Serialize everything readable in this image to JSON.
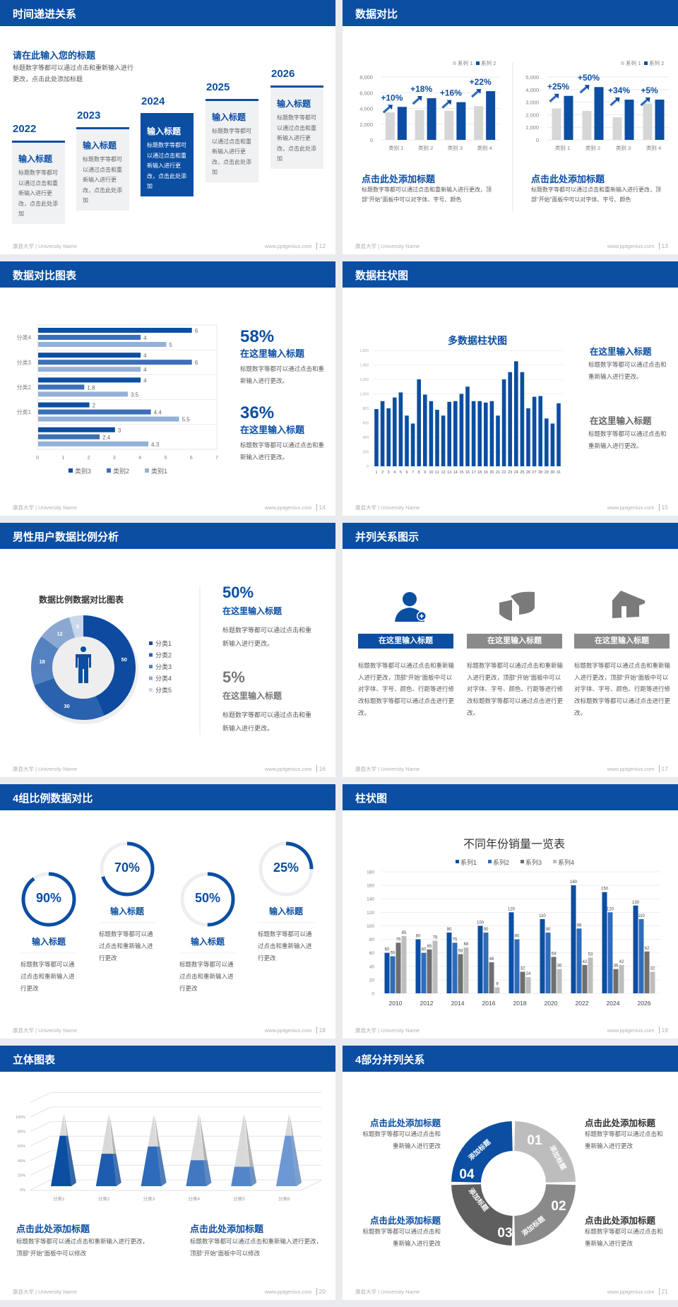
{
  "colors": {
    "brand": "#0b4ea2",
    "mid_blue": "#3d6fb5",
    "light_blue": "#93b1d8",
    "gray_bar": "#d6d6d6",
    "text": "#595959",
    "footer": "#b0b0b0"
  },
  "footer": {
    "university": "康县大学 | University Name",
    "site": "www.pptgenius.com"
  },
  "slides": [
    {
      "title": "时间递进关系",
      "page": "12",
      "heading": "请在此输入您的标题",
      "desc": "标题数字等都可以通过点击和重新输入进行更改，点击此处添加标题",
      "cards": [
        {
          "year": "2022",
          "title": "输入标题",
          "text": "标题数字等都可以通过点击和重新输入进行更改，点击此处添加",
          "active": false
        },
        {
          "year": "2023",
          "title": "输入标题",
          "text": "标题数字等都可以通过点击和重新输入进行更改，点击此处添加",
          "active": false
        },
        {
          "year": "2024",
          "title": "输入标题",
          "text": "标题数字等都可以通过点击和重新输入进行更改，点击此处添加",
          "active": true
        },
        {
          "year": "2025",
          "title": "输入标题",
          "text": "标题数字等都可以通过点击和重新输入进行更改，点击此处添加",
          "active": false
        },
        {
          "year": "2026",
          "title": "输入标题",
          "text": "标题数字等都可以通过点击和重新输入进行更改，点击此处添加",
          "active": false
        }
      ]
    },
    {
      "title": "数据对比",
      "page": "13",
      "blocks": [
        {
          "heading": "点击此处添加标题",
          "text": "标题数字等都可以通过点击和重新输入进行更改，顶部“开始”面板中可以对字体、字号、颜色"
        },
        {
          "heading": "点击此处添加标题",
          "text": "标题数字等都可以通过点击和重新输入进行更改，顶部“开始”面板中可以对字体、字号、颜色"
        }
      ]
    },
    {
      "title": "数据对比图表",
      "page": "14",
      "stats": [
        {
          "value": "58%",
          "heading": "在这里输入标题",
          "text": "标题数字等都可以通过点击和重新输入进行更改。"
        },
        {
          "value": "36%",
          "heading": "在这里输入标题",
          "text": "标题数字等都可以通过点击和重新输入进行更改。"
        }
      ]
    },
    {
      "title": "数据柱状图",
      "page": "15",
      "items": [
        {
          "heading": "在这里输入标题",
          "text": "标题数字等都可以通过点击和重新输入进行更改。"
        },
        {
          "heading": "在这里输入标题",
          "text": "标题数字等都可以通过点击和重新输入进行更改。"
        }
      ]
    },
    {
      "title": "男性用户数据比例分析",
      "page": "16",
      "stats": [
        {
          "value": "50%",
          "heading": "在这里输入标题",
          "text": "标题数字等都可以通过点击和重新输入进行更改。"
        },
        {
          "value": "5%",
          "heading": "在这里输入标题",
          "text": "标题数字等都可以通过点击和重新输入进行更改。"
        }
      ]
    },
    {
      "title": "并列关系图示",
      "page": "17",
      "columns": [
        {
          "icon": "person-add-icon",
          "button": "在这里输入标题",
          "active": true,
          "text": "标题数字等都可以通过点击和重新输入进行更改，顶部“开始”面板中可以对字体、字号、颜色、行距等进行修改标题数字等都可以通过点击进行更改。"
        },
        {
          "icon": "pie-chart-3d-icon",
          "button": "在这里输入标题",
          "active": false,
          "text": "标题数字等都可以通过点击和重新输入进行更改，顶部“开始”面板中可以对字体、字号、颜色、行距等进行修改标题数字等都可以通过点击进行更改。"
        },
        {
          "icon": "building-icon",
          "button": "在这里输入标题",
          "active": false,
          "text": "标题数字等都可以通过点击和重新输入进行更改，顶部“开始”面板中可以对字体、字号、颜色、行距等进行修改标题数字等都可以通过点击进行更改。"
        }
      ]
    },
    {
      "title": "4组比例数据对比",
      "page": "18",
      "rings": [
        {
          "label": "90%",
          "value": 90,
          "heading": "输入标题",
          "text": "标题数字等都可以通过点击和重新输入进行更改"
        },
        {
          "label": "70%",
          "value": 70,
          "heading": "输入标题",
          "text": "标题数字等都可以通过点击和重新输入进行更改"
        },
        {
          "label": "50%",
          "value": 50,
          "heading": "输入标题",
          "text": "标题数字等都可以通过点击和重新输入进行更改"
        },
        {
          "label": "25%",
          "value": 25,
          "heading": "输入标题",
          "text": "标题数字等都可以通过点击和重新输入进行更改"
        }
      ]
    },
    {
      "title": "柱状图",
      "page": "19"
    },
    {
      "title": "立体图表",
      "page": "20",
      "blocks": [
        {
          "heading": "点击此处添加标题",
          "text": "标题数字等都可以通过点击和重新输入进行更改，顶部“开始”面板中可以修改"
        },
        {
          "heading": "点击此处添加标题",
          "text": "标题数字等都可以通过点击和重新输入进行更改，顶部“开始”面板中可以修改"
        }
      ]
    },
    {
      "title": "4部分并列关系",
      "page": "21",
      "segments": [
        {
          "number": "01",
          "label": "添加标题",
          "color": "#bdbdbd"
        },
        {
          "number": "02",
          "label": "添加标题",
          "color": "#8a8a8a"
        },
        {
          "number": "03",
          "label": "添加标题",
          "color": "#5f5f5f"
        },
        {
          "number": "04",
          "label": "添加标题",
          "color": "#0b4ea2"
        }
      ],
      "blocks": [
        {
          "heading": "点击此处添加标题",
          "text": "标题数字等都可以通过点击和重新输入进行更改"
        },
        {
          "heading": "点击此处添加标题",
          "text": "标题数字等都可以通过点击和重新输入进行更改"
        },
        {
          "heading": "点击此处添加标题",
          "text": "标题数字等都可以通过点击和重新输入进行更改"
        },
        {
          "heading": "点击此处添加标题",
          "text": "标题数字等都可以通过点击和重新输入进行更改"
        }
      ]
    }
  ],
  "chart_data": [
    {
      "id": "compare-left",
      "type": "bar",
      "categories": [
        "类别 1",
        "类别 2",
        "类别 3",
        "类别 4"
      ],
      "ylim": [
        0,
        8000
      ],
      "tick_labels": [
        "0",
        "2,000",
        "4,000",
        "6,000",
        "8,000"
      ],
      "grid": true,
      "legend": "top-right",
      "series": [
        {
          "name": "系列 1",
          "values": [
            3500,
            3800,
            3700,
            4300
          ],
          "color": "#d6d6d6"
        },
        {
          "name": "系列 2",
          "values": [
            4200,
            5300,
            4800,
            6200
          ],
          "color": "#0b4ea2"
        }
      ],
      "annotations": [
        "+10%",
        "+18%",
        "+16%",
        "+22%"
      ]
    },
    {
      "id": "compare-right",
      "type": "bar",
      "categories": [
        "类别 1",
        "类别 2",
        "类别 3",
        "类别 4"
      ],
      "ylim": [
        0,
        5000
      ],
      "tick_labels": [
        "0",
        "1,000",
        "2,000",
        "3,000",
        "4,000",
        "5,000"
      ],
      "grid": true,
      "legend": "top-right",
      "series": [
        {
          "name": "系列 1",
          "values": [
            2500,
            2300,
            1800,
            2900
          ],
          "color": "#d6d6d6"
        },
        {
          "name": "系列 2",
          "values": [
            3500,
            4200,
            3200,
            3200
          ],
          "color": "#0b4ea2"
        }
      ],
      "annotations": [
        "+25%",
        "+50%",
        "+34%",
        "+5%"
      ]
    },
    {
      "id": "hbar",
      "type": "bar",
      "orientation": "horizontal",
      "categories": [
        "分类4",
        "分类3",
        "分类2",
        "分类1",
        ""
      ],
      "xlim": [
        0,
        7
      ],
      "tick_labels": [
        "0",
        "1",
        "2",
        "3",
        "4",
        "5",
        "6",
        "7"
      ],
      "legend": "bottom",
      "series": [
        {
          "name": "类别3",
          "values": [
            6,
            4,
            4,
            2,
            3
          ],
          "color": "#0b4ea2"
        },
        {
          "name": "类别2",
          "values": [
            4,
            6,
            1.8,
            4.4,
            2.4
          ],
          "color": "#3d6fb5"
        },
        {
          "name": "类别1",
          "values": [
            5,
            4,
            3.5,
            5.5,
            4.3
          ],
          "color": "#93b1d8"
        }
      ]
    },
    {
      "id": "multi-bar",
      "type": "bar",
      "title": "多数据柱状图",
      "ylim": [
        0,
        1600
      ],
      "tick_labels": [
        "0",
        "200",
        "400",
        "600",
        "800",
        "1,000",
        "1,200",
        "1,400",
        "1,600"
      ],
      "categories": [
        "1",
        "2",
        "3",
        "4",
        "5",
        "6",
        "7",
        "8",
        "9",
        "10",
        "11",
        "12",
        "13",
        "14",
        "15",
        "16",
        "17",
        "18",
        "19",
        "20",
        "21",
        "22",
        "23",
        "24",
        "25",
        "26",
        "27",
        "28",
        "29",
        "30",
        "31"
      ],
      "values": [
        790,
        900,
        800,
        950,
        1020,
        700,
        590,
        1200,
        990,
        900,
        780,
        700,
        890,
        900,
        1000,
        1100,
        900,
        900,
        880,
        900,
        700,
        1200,
        1300,
        1450,
        1300,
        800,
        960,
        970,
        660,
        590,
        870
      ]
    },
    {
      "id": "donut",
      "type": "pie",
      "title": "数据比例数据对比图表",
      "legend": "right",
      "categories": [
        "分类1",
        "分类2",
        "分类3",
        "分类4",
        "分类5"
      ],
      "values": [
        50,
        30,
        18,
        12,
        5
      ],
      "colors": [
        "#0d4aa0",
        "#2a62ae",
        "#5482c0",
        "#8aa8d2",
        "#c9d7ea"
      ]
    },
    {
      "id": "yearly",
      "type": "bar",
      "title": "不同年份销量一览表",
      "ylim": [
        0,
        180
      ],
      "legend": "top",
      "tick_labels": [
        "0",
        "20",
        "40",
        "60",
        "80",
        "100",
        "120",
        "140",
        "160",
        "180"
      ],
      "categories": [
        "2010",
        "2012",
        "2014",
        "2016",
        "2018",
        "2020",
        "2022",
        "2024",
        "2026"
      ],
      "series": [
        {
          "name": "系列1",
          "values": [
            60,
            80,
            90,
            100,
            120,
            110,
            160,
            150,
            130
          ],
          "color": "#0b4ea2"
        },
        {
          "name": "系列2",
          "values": [
            55,
            60,
            75,
            90,
            80,
            90,
            96,
            120,
            110
          ],
          "color": "#2f6cba"
        },
        {
          "name": "系列3",
          "values": [
            75,
            65,
            58,
            46,
            32,
            54,
            42,
            36,
            62
          ],
          "color": "#6f6f6f"
        },
        {
          "name": "系列4",
          "values": [
            85,
            78,
            68,
            9,
            24,
            36,
            53,
            42,
            32
          ],
          "color": "#bdbdbd"
        }
      ]
    },
    {
      "id": "pyramid",
      "type": "bar",
      "style": "3d-pyramid",
      "ylim": [
        0,
        100
      ],
      "tick_labels": [
        "0%",
        "20%",
        "40%",
        "60%",
        "80%",
        "100%"
      ],
      "categories": [
        "分类1",
        "分类2",
        "分类3",
        "分类4",
        "分类5",
        "分类6"
      ],
      "values": [
        70,
        45,
        55,
        36,
        27,
        70
      ],
      "colors": [
        "#0b4ea2",
        "#1d5cb0",
        "#2f6bbb",
        "#4278c2",
        "#5585c9",
        "#6e98d3"
      ]
    }
  ]
}
